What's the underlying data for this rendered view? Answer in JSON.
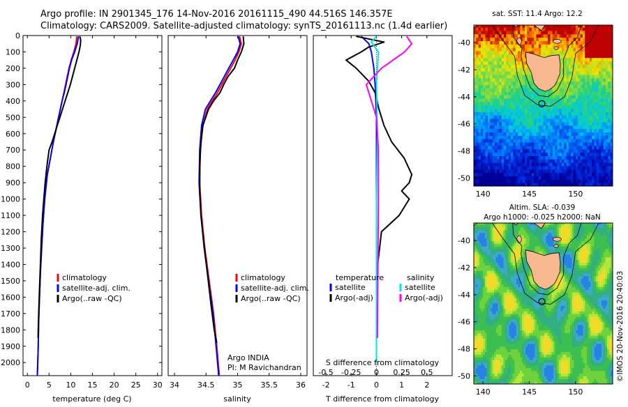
{
  "header": {
    "line1": "Argo profile: IN 2901345_176 14-Nov-2016 20161115_490 44.516S 146.357E",
    "line2": "Climatology: CARS2009. Satellite-adjusted climatology: synTS_20161113.nc (1.4d earlier)"
  },
  "colors": {
    "clim": "#ff0000",
    "sat": "#0000ff",
    "argo": "#000000",
    "sal_sat": "#00e5e5",
    "sal_argo": "#ff00ff",
    "land": "#f7b88f"
  },
  "chart_data": [
    {
      "type": "line",
      "panel": "temperature",
      "xlabel": "temperature (deg C)",
      "ylabel": "",
      "xlim": [
        -1,
        31
      ],
      "ylim": [
        2080,
        0
      ],
      "xticks": [
        0,
        5,
        10,
        15,
        20,
        25,
        30
      ],
      "xtick_labels": [
        "0",
        "5",
        "10",
        "15",
        "20",
        "25",
        "30"
      ],
      "yticks": [
        0,
        100,
        200,
        300,
        400,
        500,
        600,
        700,
        800,
        900,
        1000,
        1100,
        1200,
        1300,
        1400,
        1500,
        1600,
        1700,
        1800,
        1900,
        2000
      ],
      "ytick_labels": [
        "0",
        "100",
        "200",
        "300",
        "400",
        "500",
        "600",
        "700",
        "800",
        "900",
        "1000",
        "1100",
        "1200",
        "1300",
        "1400",
        "1500",
        "1600",
        "1700",
        "1800",
        "1900",
        "2000"
      ],
      "legend": [
        "climatology",
        "satellite-adj. clim.",
        "Argo(..raw -QC)"
      ],
      "series": [
        {
          "name": "climatology",
          "color": "#ff0000",
          "x": [
            11.4,
            11.2,
            10.7,
            10.1,
            9.6,
            9.2,
            8.8,
            8.4,
            8.0,
            7.6,
            6.8,
            6.0,
            5.3,
            4.6,
            4.0,
            3.6,
            3.3,
            3.0,
            2.8,
            2.6,
            2.5,
            2.4,
            2.3
          ],
          "y": [
            5,
            50,
            100,
            150,
            200,
            250,
            300,
            350,
            400,
            450,
            550,
            650,
            750,
            850,
            1000,
            1150,
            1300,
            1450,
            1600,
            1750,
            1900,
            2000,
            2080
          ]
        },
        {
          "name": "satellite-adj. clim.",
          "color": "#0000ff",
          "x": [
            11.8,
            11.5,
            10.9,
            10.2,
            9.7,
            9.3,
            8.9,
            8.5,
            8.0,
            7.6,
            6.8,
            6.0,
            5.3,
            4.6,
            4.0,
            3.6,
            3.3,
            3.0,
            2.8,
            2.6,
            2.5,
            2.4,
            2.3
          ],
          "y": [
            5,
            50,
            100,
            150,
            200,
            250,
            300,
            350,
            400,
            450,
            550,
            650,
            750,
            850,
            1000,
            1150,
            1300,
            1450,
            1600,
            1750,
            1900,
            2000,
            2080
          ]
        },
        {
          "name": "Argo(..raw -QC)",
          "color": "#000000",
          "x": [
            12.1,
            12.3,
            12.2,
            11.9,
            11.4,
            10.9,
            10.4,
            9.9,
            9.3,
            8.7,
            8.1,
            7.5,
            6.9,
            6.3,
            5.7,
            5.0,
            4.5,
            4.1,
            3.8,
            3.5,
            3.2,
            3.0,
            2.8,
            2.6,
            2.45
          ],
          "y": [
            5,
            30,
            60,
            100,
            150,
            200,
            250,
            300,
            350,
            400,
            450,
            500,
            550,
            600,
            650,
            700,
            800,
            900,
            1000,
            1100,
            1250,
            1400,
            1550,
            1700,
            1850
          ]
        }
      ]
    },
    {
      "type": "line",
      "panel": "salinity",
      "xlabel": "salinity",
      "ylabel": "",
      "xlim": [
        33.9,
        36.1
      ],
      "ylim": [
        2080,
        0
      ],
      "xticks": [
        34,
        34.5,
        35,
        35.5,
        36
      ],
      "xtick_labels": [
        "34",
        "34.5",
        "35",
        "35.5",
        "36"
      ],
      "legend": [
        "climatology",
        "satellite-adj. clim.",
        "Argo(..raw -QC)"
      ],
      "annotation": [
        "Argo INDIA",
        "PI: M Ravichandran"
      ],
      "series": [
        {
          "name": "climatology",
          "color": "#ff0000",
          "x": [
            35.03,
            35.06,
            35.02,
            34.96,
            34.89,
            34.82,
            34.75,
            34.68,
            34.6,
            34.52,
            34.45,
            34.41,
            34.4,
            34.43,
            34.48,
            34.55,
            34.62,
            34.67,
            34.71
          ],
          "y": [
            5,
            50,
            100,
            150,
            200,
            250,
            300,
            350,
            400,
            450,
            550,
            700,
            900,
            1100,
            1300,
            1500,
            1700,
            1900,
            2080
          ]
        },
        {
          "name": "satellite-adj. clim.",
          "color": "#0000ff",
          "x": [
            35.01,
            35.04,
            35.0,
            34.93,
            34.86,
            34.79,
            34.72,
            34.65,
            34.57,
            34.49,
            34.43,
            34.4,
            34.39,
            34.42,
            34.47,
            34.54,
            34.61,
            34.66,
            34.7
          ],
          "y": [
            5,
            50,
            100,
            150,
            200,
            250,
            300,
            350,
            400,
            450,
            550,
            700,
            900,
            1100,
            1300,
            1500,
            1700,
            1900,
            2080
          ]
        },
        {
          "name": "Argo(..raw -QC)",
          "color": "#000000",
          "x": [
            35.09,
            35.1,
            35.06,
            35.0,
            34.95,
            34.85,
            34.78,
            34.72,
            34.62,
            34.54,
            34.45,
            34.42,
            34.4,
            34.4,
            34.42,
            34.46,
            34.52,
            34.58,
            34.63,
            34.67
          ],
          "y": [
            5,
            50,
            100,
            150,
            200,
            250,
            300,
            350,
            400,
            450,
            550,
            650,
            800,
            950,
            1100,
            1250,
            1450,
            1650,
            1800,
            1880
          ]
        }
      ]
    },
    {
      "type": "line",
      "panel": "difference",
      "xlabel": "T difference from climatology",
      "xlabel2": "S difference from climatology",
      "xlim": [
        -2.5,
        3.0
      ],
      "ylim": [
        2080,
        0
      ],
      "xticks": [
        -2,
        -1,
        0,
        1,
        2
      ],
      "xtick_labels": [
        "-2",
        "-1",
        "0",
        "1",
        "2"
      ],
      "sticks": [
        -0.5,
        -0.25,
        0,
        0.25,
        0.5
      ],
      "stick_labels": [
        "-0.5",
        "-0.25",
        "0",
        "0.25",
        "0.5"
      ],
      "legend_titles": [
        "temperature",
        "salinity"
      ],
      "legend": [
        "satellite",
        "Argo(-adj)",
        "satellite",
        "Argo(-adj)"
      ],
      "series": [
        {
          "name": "satellite",
          "group": "temperature",
          "color": "#0000ff",
          "x": [
            -0.6,
            -0.3,
            -0.2,
            -0.1,
            -0.05,
            0,
            0,
            0,
            0,
            0
          ],
          "y": [
            5,
            50,
            100,
            200,
            300,
            500,
            800,
            1200,
            1600,
            2000
          ]
        },
        {
          "name": "Argo(-adj)",
          "group": "temperature",
          "color": "#000000",
          "x": [
            -0.8,
            0.3,
            -0.3,
            -0.6,
            -1.2,
            -0.8,
            -0.3,
            -0.05,
            0.1,
            0.3,
            0.6,
            1.1,
            1.4,
            1.3,
            1.0,
            1.3,
            0.9,
            0.2,
            0.05,
            0,
            0
          ],
          "y": [
            5,
            40,
            70,
            100,
            150,
            200,
            280,
            350,
            450,
            550,
            650,
            750,
            850,
            900,
            950,
            1000,
            1100,
            1200,
            1400,
            1600,
            1850
          ]
        },
        {
          "name": "satellite",
          "group": "salinity",
          "color": "#00e5e5",
          "x": [
            0,
            -0.05,
            0.02,
            0,
            0.01,
            0,
            0,
            0
          ],
          "y": [
            5,
            40,
            100,
            300,
            600,
            1000,
            1500,
            2000
          ]
        },
        {
          "name": "Argo(-adj)",
          "group": "salinity",
          "color": "#ff00ff",
          "x": [
            0.3,
            0.35,
            0.28,
            0.05,
            -0.1,
            -0.05,
            0,
            0.02,
            0.02,
            0.01
          ],
          "y": [
            5,
            50,
            100,
            200,
            300,
            400,
            500,
            700,
            1000,
            1850
          ]
        }
      ]
    },
    {
      "type": "heatmap",
      "panel": "sst-map",
      "title": "sat. SST: 11.4 Argo: 12.2",
      "xlim": [
        139,
        154
      ],
      "ylim": [
        -50.6,
        -38.7
      ],
      "xticks": [
        140,
        145,
        150
      ],
      "xtick_labels": [
        "140",
        "145",
        "150"
      ],
      "yticks": [
        -40,
        -42,
        -44,
        -46,
        -48,
        -50
      ],
      "ytick_labels": [
        "-40",
        "-42",
        "-44",
        "-46",
        "-48",
        "-50"
      ],
      "marker": {
        "lon": 146.357,
        "lat": -44.516
      }
    },
    {
      "type": "heatmap",
      "panel": "sla-map",
      "title": [
        "Altim. SLA: -0.039",
        "Argo h1000: -0.025 h2000: NaN"
      ],
      "xlim": [
        139,
        154
      ],
      "ylim": [
        -50.6,
        -38.7
      ],
      "xticks": [
        140,
        145,
        150
      ],
      "xtick_labels": [
        "140",
        "145",
        "150"
      ],
      "yticks": [
        -40,
        -42,
        -44,
        -46,
        -48,
        -50
      ],
      "ytick_labels": [
        "-40",
        "-42",
        "-44",
        "-46",
        "-48",
        "-50"
      ],
      "marker": {
        "lon": 146.357,
        "lat": -44.516
      }
    }
  ],
  "footer": {
    "stamp": "©IMOS 20-Nov-2016 20:40:03"
  }
}
